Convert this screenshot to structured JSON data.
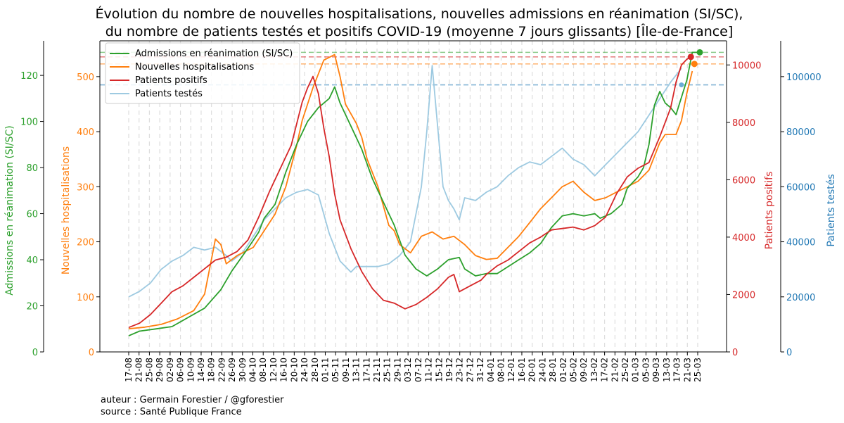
{
  "chart_data": {
    "type": "line",
    "title_line1": "Évolution du nombre de nouvelles hospitalisations, nouvelles admissions en réanimation (SI/SC),",
    "title_line2": "du nombre de patients testés et positifs COVID-19 (moyenne 7 jours glissants) [Île-de-France]",
    "x_tick_labels": [
      "17-08",
      "21-08",
      "25-08",
      "29-08",
      "02-09",
      "06-09",
      "10-09",
      "14-09",
      "18-09",
      "22-09",
      "26-09",
      "30-09",
      "04-10",
      "08-10",
      "12-10",
      "16-10",
      "20-10",
      "24-10",
      "28-10",
      "01-11",
      "05-11",
      "09-11",
      "13-11",
      "17-11",
      "21-11",
      "25-11",
      "29-11",
      "03-12",
      "07-12",
      "11-12",
      "15-12",
      "19-12",
      "23-12",
      "27-12",
      "31-12",
      "04-01",
      "08-01",
      "12-01",
      "16-01",
      "20-01",
      "24-01",
      "28-01",
      "01-02",
      "05-02",
      "09-02",
      "13-02",
      "17-02",
      "21-02",
      "25-02",
      "01-03",
      "05-03",
      "09-03",
      "13-03",
      "17-03",
      "21-03",
      "25-03"
    ],
    "axes": [
      {
        "id": "rea",
        "label": "Admissions en réanimation (SI/SC)",
        "range": [
          0,
          135
        ],
        "ticks": [
          0,
          20,
          40,
          60,
          80,
          100,
          120
        ],
        "color": "#2ca02c"
      },
      {
        "id": "hosp",
        "label": "Nouvelles hospitalisations",
        "range": [
          0,
          565
        ],
        "ticks": [
          0,
          100,
          200,
          300,
          400,
          500
        ],
        "color": "#ff7f0e"
      },
      {
        "id": "pos",
        "label": "Patients positifs",
        "range": [
          0,
          10840
        ],
        "ticks": [
          0,
          2000,
          4000,
          6000,
          8000,
          10000
        ],
        "color": "#d62728"
      },
      {
        "id": "tests",
        "label": "Patients testés",
        "range": [
          0,
          113000
        ],
        "ticks": [
          0,
          20000,
          40000,
          60000,
          80000,
          100000
        ],
        "color": "#1f77b4"
      }
    ],
    "series": [
      {
        "name": "Admissions en réanimation (SI/SC)",
        "axis": "rea",
        "color": "#2ca02c",
        "points": [
          [
            0,
            7
          ],
          [
            4,
            9
          ],
          [
            10,
            10
          ],
          [
            16,
            11
          ],
          [
            22,
            15
          ],
          [
            28,
            19
          ],
          [
            34,
            27
          ],
          [
            38,
            35
          ],
          [
            44,
            45
          ],
          [
            48,
            52
          ],
          [
            50,
            58
          ],
          [
            54,
            64
          ],
          [
            58,
            78
          ],
          [
            62,
            90
          ],
          [
            66,
            100
          ],
          [
            70,
            106
          ],
          [
            74,
            110
          ],
          [
            76,
            115
          ],
          [
            78,
            108
          ],
          [
            82,
            98
          ],
          [
            86,
            88
          ],
          [
            90,
            75
          ],
          [
            94,
            65
          ],
          [
            98,
            55
          ],
          [
            102,
            42
          ],
          [
            106,
            36
          ],
          [
            110,
            33
          ],
          [
            114,
            36
          ],
          [
            118,
            40
          ],
          [
            122,
            41
          ],
          [
            124,
            36
          ],
          [
            128,
            33
          ],
          [
            132,
            34
          ],
          [
            136,
            34
          ],
          [
            140,
            37
          ],
          [
            144,
            40
          ],
          [
            148,
            43
          ],
          [
            152,
            47
          ],
          [
            156,
            54
          ],
          [
            160,
            59
          ],
          [
            164,
            60
          ],
          [
            168,
            59
          ],
          [
            172,
            60
          ],
          [
            174,
            58
          ],
          [
            178,
            60
          ],
          [
            182,
            64
          ],
          [
            184,
            71
          ],
          [
            188,
            76
          ],
          [
            190,
            80
          ],
          [
            192,
            90
          ],
          [
            194,
            107
          ],
          [
            196,
            113
          ],
          [
            198,
            108
          ],
          [
            200,
            106
          ],
          [
            202,
            103
          ],
          [
            206,
            118
          ],
          [
            208,
            130
          ],
          [
            210,
            130
          ]
        ]
      },
      {
        "name": "Nouvelles hospitalisations",
        "axis": "hosp",
        "color": "#ff7f0e",
        "points": [
          [
            0,
            42
          ],
          [
            6,
            45
          ],
          [
            12,
            50
          ],
          [
            18,
            60
          ],
          [
            24,
            75
          ],
          [
            28,
            105
          ],
          [
            32,
            205
          ],
          [
            34,
            195
          ],
          [
            36,
            160
          ],
          [
            40,
            175
          ],
          [
            46,
            190
          ],
          [
            50,
            220
          ],
          [
            54,
            250
          ],
          [
            58,
            300
          ],
          [
            62,
            375
          ],
          [
            64,
            420
          ],
          [
            66,
            450
          ],
          [
            68,
            480
          ],
          [
            70,
            505
          ],
          [
            72,
            530
          ],
          [
            76,
            540
          ],
          [
            78,
            500
          ],
          [
            80,
            450
          ],
          [
            84,
            415
          ],
          [
            86,
            390
          ],
          [
            88,
            350
          ],
          [
            92,
            300
          ],
          [
            96,
            230
          ],
          [
            98,
            220
          ],
          [
            100,
            195
          ],
          [
            104,
            180
          ],
          [
            108,
            210
          ],
          [
            112,
            218
          ],
          [
            116,
            205
          ],
          [
            120,
            210
          ],
          [
            124,
            195
          ],
          [
            128,
            175
          ],
          [
            132,
            168
          ],
          [
            136,
            170
          ],
          [
            140,
            190
          ],
          [
            144,
            210
          ],
          [
            148,
            235
          ],
          [
            152,
            260
          ],
          [
            156,
            280
          ],
          [
            160,
            300
          ],
          [
            164,
            310
          ],
          [
            168,
            290
          ],
          [
            172,
            275
          ],
          [
            176,
            280
          ],
          [
            180,
            290
          ],
          [
            184,
            300
          ],
          [
            188,
            310
          ],
          [
            192,
            330
          ],
          [
            196,
            380
          ],
          [
            198,
            395
          ],
          [
            202,
            395
          ],
          [
            204,
            420
          ],
          [
            206,
            470
          ],
          [
            208,
            510
          ]
        ]
      },
      {
        "name": "Patients positifs",
        "axis": "pos",
        "color": "#d62728",
        "points": [
          [
            0,
            850
          ],
          [
            4,
            1000
          ],
          [
            8,
            1300
          ],
          [
            12,
            1700
          ],
          [
            16,
            2100
          ],
          [
            20,
            2300
          ],
          [
            24,
            2600
          ],
          [
            28,
            2900
          ],
          [
            32,
            3200
          ],
          [
            36,
            3300
          ],
          [
            40,
            3500
          ],
          [
            44,
            3900
          ],
          [
            48,
            4700
          ],
          [
            52,
            5600
          ],
          [
            56,
            6400
          ],
          [
            60,
            7200
          ],
          [
            64,
            8700
          ],
          [
            66,
            9200
          ],
          [
            68,
            9600
          ],
          [
            70,
            9000
          ],
          [
            72,
            7800
          ],
          [
            74,
            6800
          ],
          [
            76,
            5500
          ],
          [
            78,
            4600
          ],
          [
            82,
            3600
          ],
          [
            86,
            2800
          ],
          [
            90,
            2200
          ],
          [
            94,
            1800
          ],
          [
            98,
            1700
          ],
          [
            102,
            1500
          ],
          [
            106,
            1650
          ],
          [
            110,
            1900
          ],
          [
            114,
            2200
          ],
          [
            116,
            2400
          ],
          [
            118,
            2600
          ],
          [
            120,
            2700
          ],
          [
            122,
            2100
          ],
          [
            126,
            2300
          ],
          [
            130,
            2500
          ],
          [
            132,
            2700
          ],
          [
            136,
            3000
          ],
          [
            140,
            3200
          ],
          [
            144,
            3500
          ],
          [
            148,
            3800
          ],
          [
            152,
            4000
          ],
          [
            156,
            4250
          ],
          [
            160,
            4300
          ],
          [
            164,
            4350
          ],
          [
            168,
            4250
          ],
          [
            172,
            4400
          ],
          [
            176,
            4700
          ],
          [
            180,
            5500
          ],
          [
            184,
            6100
          ],
          [
            188,
            6400
          ],
          [
            192,
            6600
          ],
          [
            196,
            7500
          ],
          [
            200,
            8500
          ],
          [
            202,
            9400
          ],
          [
            204,
            10000
          ],
          [
            206,
            10200
          ],
          [
            208,
            10300
          ]
        ]
      },
      {
        "name": "Patients testés",
        "axis": "tests",
        "color": "#9ecae1",
        "points": [
          [
            0,
            20000
          ],
          [
            4,
            22000
          ],
          [
            8,
            25000
          ],
          [
            12,
            30000
          ],
          [
            16,
            33000
          ],
          [
            20,
            35000
          ],
          [
            24,
            38000
          ],
          [
            28,
            37000
          ],
          [
            32,
            38000
          ],
          [
            36,
            35000
          ],
          [
            38,
            33000
          ],
          [
            42,
            36000
          ],
          [
            46,
            42000
          ],
          [
            50,
            48000
          ],
          [
            54,
            52000
          ],
          [
            58,
            56000
          ],
          [
            62,
            58000
          ],
          [
            66,
            59000
          ],
          [
            70,
            57000
          ],
          [
            72,
            50000
          ],
          [
            74,
            43000
          ],
          [
            76,
            38000
          ],
          [
            78,
            33000
          ],
          [
            80,
            31000
          ],
          [
            82,
            29000
          ],
          [
            84,
            31000
          ],
          [
            88,
            31000
          ],
          [
            92,
            31000
          ],
          [
            96,
            32000
          ],
          [
            100,
            35000
          ],
          [
            104,
            40000
          ],
          [
            108,
            60000
          ],
          [
            110,
            80000
          ],
          [
            112,
            104000
          ],
          [
            114,
            82000
          ],
          [
            116,
            60000
          ],
          [
            118,
            55000
          ],
          [
            120,
            52000
          ],
          [
            122,
            48000
          ],
          [
            124,
            56000
          ],
          [
            128,
            55000
          ],
          [
            132,
            58000
          ],
          [
            136,
            60000
          ],
          [
            140,
            64000
          ],
          [
            144,
            67000
          ],
          [
            148,
            69000
          ],
          [
            152,
            68000
          ],
          [
            156,
            71000
          ],
          [
            160,
            74000
          ],
          [
            164,
            70000
          ],
          [
            168,
            68000
          ],
          [
            172,
            64000
          ],
          [
            176,
            68000
          ],
          [
            180,
            72000
          ],
          [
            184,
            76000
          ],
          [
            188,
            80000
          ],
          [
            192,
            86000
          ],
          [
            196,
            92000
          ],
          [
            200,
            98000
          ],
          [
            204,
            103000
          ]
        ]
      }
    ],
    "reference_lines": [
      {
        "axis": "rea",
        "value": 130,
        "color": "#2ca02c"
      },
      {
        "axis": "hosp",
        "value": 523,
        "color": "#ff7f0e"
      },
      {
        "axis": "pos",
        "value": 10280,
        "color": "#d62728"
      },
      {
        "axis": "tests",
        "value": 97000,
        "color": "#1f77b4"
      }
    ],
    "legend_position": "upper left",
    "grid": "vertical dashed"
  },
  "footer": {
    "author": "auteur : Germain Forestier / @gforestier",
    "source": "source : Santé Publique France"
  }
}
